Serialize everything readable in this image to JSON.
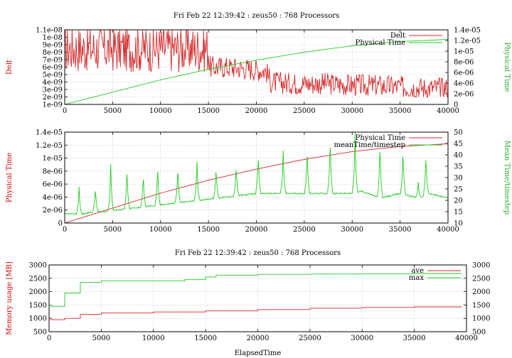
{
  "chart_data": [
    {
      "type": "line",
      "title": "Fri Feb 22 12:39:42 : zeus50 : 768 Processors",
      "xlabel": "",
      "ylabel": "Delt",
      "y2label": "Physical Time",
      "xlim": [
        0,
        40000
      ],
      "ylim": [
        1e-09,
        1.1e-08
      ],
      "y2lim": [
        0,
        1.4e-05
      ],
      "xticks": [
        "0",
        "5000",
        "10000",
        "15000",
        "20000",
        "25000",
        "30000",
        "35000",
        "40000"
      ],
      "yticks": [
        "1e-09",
        "2e-09",
        "3e-09",
        "4e-09",
        "5e-09",
        "6e-09",
        "7e-09",
        "8e-09",
        "9e-09",
        "1e-08",
        "1.1e-08"
      ],
      "y2ticks": [
        "0",
        "2e-06",
        "4e-06",
        "6e-06",
        "8e-06",
        "1e-05",
        "1.2e-05",
        "1.4e-05"
      ],
      "legend_position": "top-right",
      "grid": true,
      "series": [
        {
          "name": "Delt",
          "axis": "y",
          "color": "#d62728",
          "style": "noisy",
          "x": [
            0,
            2000,
            4000,
            6000,
            8000,
            10000,
            12000,
            14000,
            15000,
            15100,
            17000,
            19000,
            21000,
            21500,
            24000,
            27000,
            30000,
            33000,
            36000,
            38000,
            40000
          ],
          "values": [
            8.5e-09,
            8.5e-09,
            8.5e-09,
            8.5e-09,
            8.5e-09,
            8.5e-09,
            8.5e-09,
            8.5e-09,
            8.5e-09,
            6e-09,
            6e-09,
            5.8e-09,
            5.5e-09,
            4e-09,
            3.8e-09,
            3.8e-09,
            3.6e-09,
            3.5e-09,
            3.3e-09,
            3.2e-09,
            3.2e-09
          ]
        },
        {
          "name": "Physical Time",
          "axis": "y2",
          "color": "#22cc22",
          "style": "smooth",
          "x": [
            0,
            5000,
            10000,
            15000,
            20000,
            25000,
            30000,
            35000,
            40000
          ],
          "values": [
            0,
            2.3e-06,
            4.6e-06,
            6.6e-06,
            8.3e-06,
            9.8e-06,
            1.1e-05,
            1.18e-05,
            1.22e-05
          ]
        }
      ]
    },
    {
      "type": "line",
      "title": "",
      "xlabel": "",
      "ylabel": "Physical Time",
      "y2label": "Mean Time/timestep",
      "xlim": [
        0,
        40000
      ],
      "ylim": [
        0,
        1.4e-05
      ],
      "y2lim": [
        10,
        50
      ],
      "xticks": [
        "0",
        "5000",
        "10000",
        "15000",
        "20000",
        "25000",
        "30000",
        "35000",
        "40000"
      ],
      "yticks": [
        "0",
        "2e-06",
        "4e-06",
        "6e-06",
        "8e-06",
        "1e-05",
        "1.2e-05",
        "1.4e-05"
      ],
      "y2ticks": [
        "10",
        "15",
        "20",
        "25",
        "30",
        "35",
        "40",
        "45",
        "50"
      ],
      "legend_position": "top-right",
      "grid": true,
      "series": [
        {
          "name": "Physical Time",
          "axis": "y",
          "color": "#d62728",
          "style": "smooth",
          "x": [
            0,
            5000,
            10000,
            15000,
            20000,
            25000,
            30000,
            35000,
            40000
          ],
          "values": [
            0,
            2.3e-06,
            4.6e-06,
            6.6e-06,
            8.3e-06,
            9.8e-06,
            1.1e-05,
            1.18e-05,
            1.22e-05
          ]
        },
        {
          "name": "meanTime/timestep",
          "axis": "y2",
          "color": "#22cc22",
          "style": "spiky",
          "x": [
            0,
            1000,
            2000,
            3000,
            4000,
            6000,
            8000,
            10000,
            12000,
            14000,
            16000,
            18000,
            20000,
            23000,
            25000,
            28000,
            30000,
            31000,
            33000,
            35000,
            37000,
            38000,
            40000
          ],
          "values": [
            14,
            14,
            14,
            15,
            15,
            16,
            17,
            18,
            19,
            20,
            21,
            22,
            23,
            23,
            23,
            23,
            23,
            24,
            21,
            23,
            21,
            23,
            21
          ],
          "peaks": [
            {
              "x": 1500,
              "y": 26
            },
            {
              "x": 3200,
              "y": 26
            },
            {
              "x": 4800,
              "y": 36
            },
            {
              "x": 6500,
              "y": 35
            },
            {
              "x": 8200,
              "y": 32
            },
            {
              "x": 9700,
              "y": 36
            },
            {
              "x": 11800,
              "y": 35
            },
            {
              "x": 13800,
              "y": 37
            },
            {
              "x": 15800,
              "y": 35
            },
            {
              "x": 17900,
              "y": 36
            },
            {
              "x": 20200,
              "y": 41
            },
            {
              "x": 22800,
              "y": 42
            },
            {
              "x": 25300,
              "y": 43
            },
            {
              "x": 27700,
              "y": 48
            },
            {
              "x": 30300,
              "y": 50
            },
            {
              "x": 32900,
              "y": 46
            },
            {
              "x": 35300,
              "y": 43
            },
            {
              "x": 36900,
              "y": 28
            },
            {
              "x": 37700,
              "y": 41
            }
          ]
        }
      ]
    },
    {
      "type": "line",
      "title": "Fri Feb 22 12:39:42 : zeus50 : 768 Processors",
      "xlabel": "ElapsedTime",
      "ylabel": "Memory usage [MB]",
      "xlim": [
        0,
        40000
      ],
      "ylim": [
        500,
        3000
      ],
      "y2lim": [
        500,
        3000
      ],
      "xticks": [
        "0",
        "5000",
        "10000",
        "15000",
        "20000",
        "25000",
        "30000",
        "35000",
        "40000"
      ],
      "yticks": [
        "500",
        "1000",
        "1500",
        "2000",
        "2500",
        "3000"
      ],
      "y2ticks": [
        "500",
        "1000",
        "1500",
        "2000",
        "2500",
        "3000"
      ],
      "legend_position": "top-right",
      "grid": true,
      "series": [
        {
          "name": "ave",
          "axis": "y",
          "color": "#d62728",
          "style": "step",
          "x": [
            0,
            200,
            1500,
            3000,
            5000,
            10000,
            15000,
            20000,
            25000,
            30000,
            35000,
            39500
          ],
          "values": [
            1000,
            950,
            1000,
            1150,
            1200,
            1240,
            1280,
            1330,
            1380,
            1410,
            1430,
            1450
          ]
        },
        {
          "name": "max",
          "axis": "y",
          "color": "#22cc22",
          "style": "step",
          "x": [
            0,
            200,
            1500,
            3000,
            5000,
            10000,
            13000,
            15000,
            16000,
            20000,
            25000,
            30000,
            35000,
            39500
          ],
          "values": [
            1500,
            1450,
            1950,
            2350,
            2400,
            2400,
            2450,
            2550,
            2620,
            2650,
            2660,
            2670,
            2680,
            2680
          ]
        }
      ]
    }
  ]
}
